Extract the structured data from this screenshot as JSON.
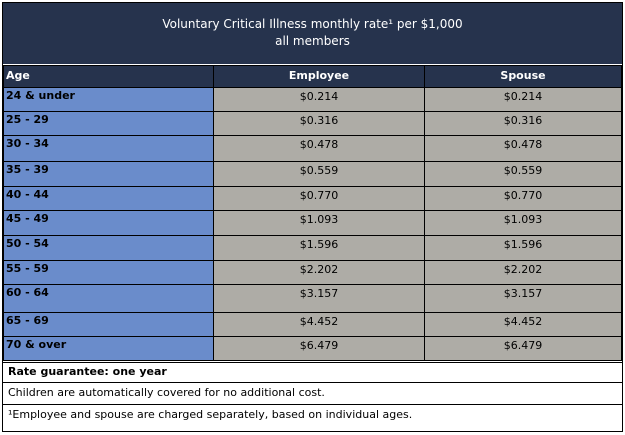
{
  "title": {
    "line1": "Voluntary Critical Illness monthly rate¹ per $1,000",
    "line2": "all members"
  },
  "headers": {
    "age": "Age",
    "employee": "Employee",
    "spouse": "Spouse"
  },
  "rows": [
    {
      "age": "24 & under",
      "employee": "$0.214",
      "spouse": "$0.214"
    },
    {
      "age": "25 - 29",
      "employee": "$0.316",
      "spouse": "$0.316"
    },
    {
      "age": "30 - 34",
      "employee": "$0.478",
      "spouse": "$0.478"
    },
    {
      "age": "35 - 39",
      "employee": "$0.559",
      "spouse": "$0.559"
    },
    {
      "age": "40 - 44",
      "employee": "$0.770",
      "spouse": "$0.770"
    },
    {
      "age": "45 - 49",
      "employee": "$1.093",
      "spouse": "$1.093"
    },
    {
      "age": "50 - 54",
      "employee": "$1.596",
      "spouse": "$1.596"
    },
    {
      "age": "55 - 59",
      "employee": "$2.202",
      "spouse": "$2.202"
    },
    {
      "age": "60 - 64",
      "employee": "$3.157",
      "spouse": "$3.157"
    },
    {
      "age": "65 - 69",
      "employee": "$4.452",
      "spouse": "$4.452"
    },
    {
      "age": "70 & over",
      "employee": "$6.479",
      "spouse": "$6.479"
    }
  ],
  "notes": {
    "rate_guarantee": "Rate guarantee: one year",
    "children": "Children are automatically covered for no additional cost.",
    "footnote": "¹Employee and spouse are charged separately, based on individual ages."
  },
  "colors": {
    "header_bg": "#26334d",
    "age_col_bg": "#6a8ccb",
    "value_bg": "#aeaca6"
  }
}
